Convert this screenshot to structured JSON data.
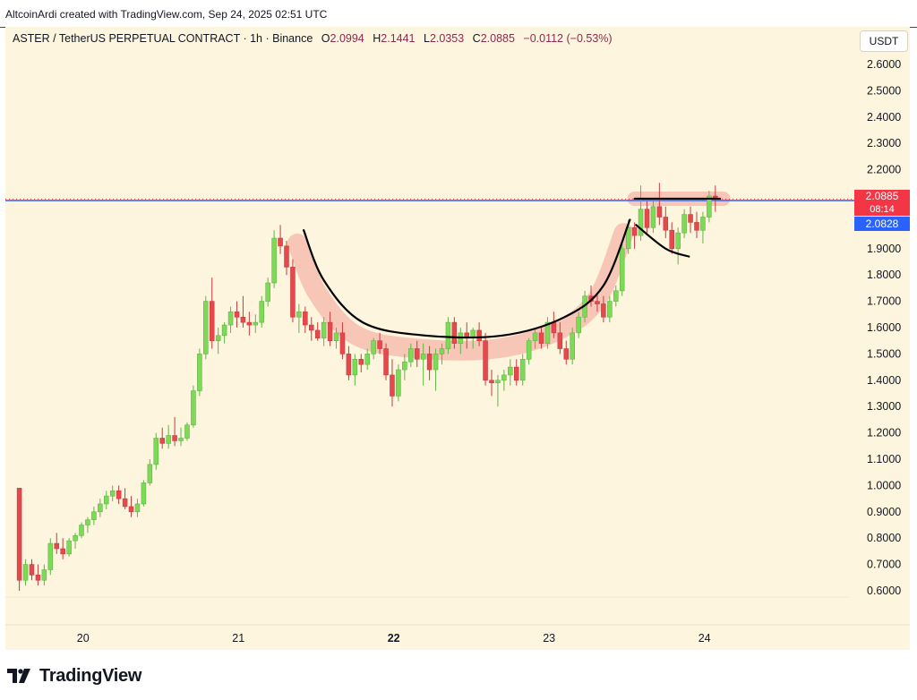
{
  "credit": "AltcoinArdi created with TradingView.com, Sep 24, 2025 02:51 UTC",
  "header": {
    "symbol": "ASTER / TetherUS PERPETUAL CONTRACT · 1h · Binance",
    "o_label": "O",
    "o": "2.0994",
    "h_label": "H",
    "h": "2.1441",
    "l_label": "L",
    "l": "2.0353",
    "c_label": "C",
    "c": "2.0885",
    "change": "−0.0112 (−0.53%)"
  },
  "unit": "USDT",
  "price_tags": {
    "last_price": "2.0885",
    "countdown": "08:14",
    "line_price": "2.0828"
  },
  "footer": {
    "brand": "TradingView",
    "logo_icon": "tradingview-logo-icon"
  },
  "colors": {
    "background": "#fdf5de",
    "up": "#7ed957",
    "down": "#e5484d",
    "horizontal_line": "#2962ff",
    "annotation_curve": "#000000",
    "annotation_highlight": "#f5b5a8"
  },
  "chart_data": {
    "type": "candlestick",
    "title": "ASTER / TetherUS PERPETUAL CONTRACT · 1h · Binance",
    "x_ticks": [
      "20",
      "21",
      "22",
      "23",
      "24"
    ],
    "x_tick_positions_day": [
      20,
      21,
      22,
      23,
      24
    ],
    "x_range_day": [
      19.5,
      24.93
    ],
    "y_ticks": [
      "2.6000",
      "2.5000",
      "2.4000",
      "2.3000",
      "2.2000",
      "2.1000",
      "2.0000",
      "1.9000",
      "1.8000",
      "1.7000",
      "1.6000",
      "1.5000",
      "1.4000",
      "1.3000",
      "1.2000",
      "1.1000",
      "1.0000",
      "0.9000",
      "0.8000",
      "0.7000",
      "0.6000"
    ],
    "ylim": [
      0.55,
      2.65
    ],
    "horizontal_line": 2.0828,
    "last_price": 2.0885,
    "candles": [
      {
        "t": 19.59,
        "o": 0.99,
        "h": 0.99,
        "l": 0.6,
        "c": 0.64
      },
      {
        "t": 19.63,
        "o": 0.64,
        "h": 0.72,
        "l": 0.62,
        "c": 0.7
      },
      {
        "t": 19.67,
        "o": 0.7,
        "h": 0.72,
        "l": 0.64,
        "c": 0.66
      },
      {
        "t": 19.71,
        "o": 0.66,
        "h": 0.7,
        "l": 0.62,
        "c": 0.64
      },
      {
        "t": 19.75,
        "o": 0.64,
        "h": 0.7,
        "l": 0.62,
        "c": 0.68
      },
      {
        "t": 19.79,
        "o": 0.68,
        "h": 0.8,
        "l": 0.66,
        "c": 0.78
      },
      {
        "t": 19.83,
        "o": 0.78,
        "h": 0.82,
        "l": 0.74,
        "c": 0.76
      },
      {
        "t": 19.87,
        "o": 0.76,
        "h": 0.8,
        "l": 0.72,
        "c": 0.74
      },
      {
        "t": 19.91,
        "o": 0.74,
        "h": 0.8,
        "l": 0.73,
        "c": 0.79
      },
      {
        "t": 19.95,
        "o": 0.79,
        "h": 0.82,
        "l": 0.76,
        "c": 0.81
      },
      {
        "t": 19.99,
        "o": 0.81,
        "h": 0.86,
        "l": 0.8,
        "c": 0.85
      },
      {
        "t": 20.03,
        "o": 0.85,
        "h": 0.88,
        "l": 0.82,
        "c": 0.87
      },
      {
        "t": 20.07,
        "o": 0.87,
        "h": 0.92,
        "l": 0.85,
        "c": 0.9
      },
      {
        "t": 20.11,
        "o": 0.9,
        "h": 0.95,
        "l": 0.88,
        "c": 0.93
      },
      {
        "t": 20.15,
        "o": 0.93,
        "h": 0.98,
        "l": 0.91,
        "c": 0.96
      },
      {
        "t": 20.19,
        "o": 0.96,
        "h": 1.0,
        "l": 0.94,
        "c": 0.98
      },
      {
        "t": 20.23,
        "o": 0.98,
        "h": 1.0,
        "l": 0.93,
        "c": 0.95
      },
      {
        "t": 20.27,
        "o": 0.95,
        "h": 0.99,
        "l": 0.91,
        "c": 0.92
      },
      {
        "t": 20.31,
        "o": 0.92,
        "h": 0.96,
        "l": 0.88,
        "c": 0.9
      },
      {
        "t": 20.35,
        "o": 0.9,
        "h": 0.95,
        "l": 0.88,
        "c": 0.93
      },
      {
        "t": 20.39,
        "o": 0.93,
        "h": 1.02,
        "l": 0.92,
        "c": 1.01
      },
      {
        "t": 20.43,
        "o": 1.01,
        "h": 1.1,
        "l": 1.0,
        "c": 1.08
      },
      {
        "t": 20.47,
        "o": 1.08,
        "h": 1.2,
        "l": 1.06,
        "c": 1.18
      },
      {
        "t": 20.51,
        "o": 1.18,
        "h": 1.22,
        "l": 1.14,
        "c": 1.16
      },
      {
        "t": 20.55,
        "o": 1.16,
        "h": 1.23,
        "l": 1.14,
        "c": 1.19
      },
      {
        "t": 20.59,
        "o": 1.19,
        "h": 1.26,
        "l": 1.15,
        "c": 1.17
      },
      {
        "t": 20.63,
        "o": 1.17,
        "h": 1.22,
        "l": 1.15,
        "c": 1.18
      },
      {
        "t": 20.67,
        "o": 1.18,
        "h": 1.24,
        "l": 1.17,
        "c": 1.23
      },
      {
        "t": 20.71,
        "o": 1.23,
        "h": 1.38,
        "l": 1.22,
        "c": 1.36
      },
      {
        "t": 20.75,
        "o": 1.36,
        "h": 1.52,
        "l": 1.34,
        "c": 1.5
      },
      {
        "t": 20.79,
        "o": 1.5,
        "h": 1.72,
        "l": 1.48,
        "c": 1.7
      },
      {
        "t": 20.83,
        "o": 1.7,
        "h": 1.79,
        "l": 1.52,
        "c": 1.55
      },
      {
        "t": 20.87,
        "o": 1.55,
        "h": 1.6,
        "l": 1.5,
        "c": 1.57
      },
      {
        "t": 20.91,
        "o": 1.57,
        "h": 1.62,
        "l": 1.54,
        "c": 1.61
      },
      {
        "t": 20.95,
        "o": 1.61,
        "h": 1.68,
        "l": 1.58,
        "c": 1.66
      },
      {
        "t": 20.99,
        "o": 1.66,
        "h": 1.7,
        "l": 1.6,
        "c": 1.64
      },
      {
        "t": 21.03,
        "o": 1.64,
        "h": 1.72,
        "l": 1.6,
        "c": 1.62
      },
      {
        "t": 21.07,
        "o": 1.62,
        "h": 1.66,
        "l": 1.57,
        "c": 1.61
      },
      {
        "t": 21.11,
        "o": 1.61,
        "h": 1.65,
        "l": 1.58,
        "c": 1.62
      },
      {
        "t": 21.15,
        "o": 1.62,
        "h": 1.72,
        "l": 1.6,
        "c": 1.7
      },
      {
        "t": 21.19,
        "o": 1.7,
        "h": 1.79,
        "l": 1.68,
        "c": 1.77
      },
      {
        "t": 21.23,
        "o": 1.77,
        "h": 1.97,
        "l": 1.75,
        "c": 1.94
      },
      {
        "t": 21.27,
        "o": 1.94,
        "h": 1.99,
        "l": 1.88,
        "c": 1.91
      },
      {
        "t": 21.31,
        "o": 1.91,
        "h": 1.93,
        "l": 1.8,
        "c": 1.83
      },
      {
        "t": 21.35,
        "o": 1.83,
        "h": 1.86,
        "l": 1.62,
        "c": 1.64
      },
      {
        "t": 21.39,
        "o": 1.64,
        "h": 1.69,
        "l": 1.58,
        "c": 1.66
      },
      {
        "t": 21.43,
        "o": 1.66,
        "h": 1.68,
        "l": 1.58,
        "c": 1.61
      },
      {
        "t": 21.47,
        "o": 1.61,
        "h": 1.64,
        "l": 1.55,
        "c": 1.59
      },
      {
        "t": 21.51,
        "o": 1.59,
        "h": 1.62,
        "l": 1.55,
        "c": 1.56
      },
      {
        "t": 21.55,
        "o": 1.56,
        "h": 1.64,
        "l": 1.53,
        "c": 1.62
      },
      {
        "t": 21.59,
        "o": 1.62,
        "h": 1.66,
        "l": 1.53,
        "c": 1.55
      },
      {
        "t": 21.63,
        "o": 1.55,
        "h": 1.6,
        "l": 1.52,
        "c": 1.58
      },
      {
        "t": 21.67,
        "o": 1.58,
        "h": 1.62,
        "l": 1.48,
        "c": 1.5
      },
      {
        "t": 21.71,
        "o": 1.5,
        "h": 1.53,
        "l": 1.4,
        "c": 1.42
      },
      {
        "t": 21.75,
        "o": 1.42,
        "h": 1.5,
        "l": 1.38,
        "c": 1.48
      },
      {
        "t": 21.79,
        "o": 1.48,
        "h": 1.5,
        "l": 1.43,
        "c": 1.46
      },
      {
        "t": 21.83,
        "o": 1.46,
        "h": 1.52,
        "l": 1.44,
        "c": 1.5
      },
      {
        "t": 21.87,
        "o": 1.5,
        "h": 1.56,
        "l": 1.48,
        "c": 1.55
      },
      {
        "t": 21.91,
        "o": 1.55,
        "h": 1.58,
        "l": 1.5,
        "c": 1.52
      },
      {
        "t": 21.95,
        "o": 1.52,
        "h": 1.54,
        "l": 1.4,
        "c": 1.42
      },
      {
        "t": 21.99,
        "o": 1.42,
        "h": 1.48,
        "l": 1.3,
        "c": 1.34
      },
      {
        "t": 22.03,
        "o": 1.34,
        "h": 1.46,
        "l": 1.32,
        "c": 1.44
      },
      {
        "t": 22.07,
        "o": 1.44,
        "h": 1.5,
        "l": 1.4,
        "c": 1.47
      },
      {
        "t": 22.11,
        "o": 1.47,
        "h": 1.54,
        "l": 1.45,
        "c": 1.52
      },
      {
        "t": 22.15,
        "o": 1.52,
        "h": 1.55,
        "l": 1.45,
        "c": 1.48
      },
      {
        "t": 22.19,
        "o": 1.48,
        "h": 1.54,
        "l": 1.38,
        "c": 1.5
      },
      {
        "t": 22.23,
        "o": 1.5,
        "h": 1.53,
        "l": 1.4,
        "c": 1.44
      },
      {
        "t": 22.27,
        "o": 1.44,
        "h": 1.52,
        "l": 1.36,
        "c": 1.5
      },
      {
        "t": 22.31,
        "o": 1.5,
        "h": 1.54,
        "l": 1.46,
        "c": 1.52
      },
      {
        "t": 22.35,
        "o": 1.52,
        "h": 1.64,
        "l": 1.5,
        "c": 1.62
      },
      {
        "t": 22.39,
        "o": 1.62,
        "h": 1.64,
        "l": 1.52,
        "c": 1.54
      },
      {
        "t": 22.43,
        "o": 1.54,
        "h": 1.6,
        "l": 1.5,
        "c": 1.58
      },
      {
        "t": 22.47,
        "o": 1.58,
        "h": 1.62,
        "l": 1.52,
        "c": 1.56
      },
      {
        "t": 22.51,
        "o": 1.56,
        "h": 1.6,
        "l": 1.52,
        "c": 1.59
      },
      {
        "t": 22.55,
        "o": 1.59,
        "h": 1.62,
        "l": 1.53,
        "c": 1.55
      },
      {
        "t": 22.59,
        "o": 1.55,
        "h": 1.58,
        "l": 1.38,
        "c": 1.4
      },
      {
        "t": 22.63,
        "o": 1.4,
        "h": 1.44,
        "l": 1.34,
        "c": 1.39
      },
      {
        "t": 22.67,
        "o": 1.39,
        "h": 1.42,
        "l": 1.3,
        "c": 1.4
      },
      {
        "t": 22.71,
        "o": 1.4,
        "h": 1.44,
        "l": 1.36,
        "c": 1.42
      },
      {
        "t": 22.75,
        "o": 1.42,
        "h": 1.48,
        "l": 1.38,
        "c": 1.45
      },
      {
        "t": 22.79,
        "o": 1.45,
        "h": 1.48,
        "l": 1.38,
        "c": 1.4
      },
      {
        "t": 22.83,
        "o": 1.4,
        "h": 1.5,
        "l": 1.38,
        "c": 1.48
      },
      {
        "t": 22.87,
        "o": 1.48,
        "h": 1.56,
        "l": 1.46,
        "c": 1.55
      },
      {
        "t": 22.91,
        "o": 1.55,
        "h": 1.6,
        "l": 1.52,
        "c": 1.58
      },
      {
        "t": 22.95,
        "o": 1.58,
        "h": 1.6,
        "l": 1.52,
        "c": 1.54
      },
      {
        "t": 22.99,
        "o": 1.54,
        "h": 1.64,
        "l": 1.52,
        "c": 1.62
      },
      {
        "t": 23.03,
        "o": 1.62,
        "h": 1.66,
        "l": 1.56,
        "c": 1.58
      },
      {
        "t": 23.07,
        "o": 1.58,
        "h": 1.62,
        "l": 1.5,
        "c": 1.52
      },
      {
        "t": 23.11,
        "o": 1.52,
        "h": 1.55,
        "l": 1.46,
        "c": 1.48
      },
      {
        "t": 23.15,
        "o": 1.48,
        "h": 1.6,
        "l": 1.46,
        "c": 1.58
      },
      {
        "t": 23.19,
        "o": 1.58,
        "h": 1.66,
        "l": 1.56,
        "c": 1.64
      },
      {
        "t": 23.23,
        "o": 1.64,
        "h": 1.74,
        "l": 1.62,
        "c": 1.72
      },
      {
        "t": 23.27,
        "o": 1.72,
        "h": 1.76,
        "l": 1.68,
        "c": 1.7
      },
      {
        "t": 23.31,
        "o": 1.7,
        "h": 1.73,
        "l": 1.66,
        "c": 1.69
      },
      {
        "t": 23.35,
        "o": 1.69,
        "h": 1.72,
        "l": 1.62,
        "c": 1.64
      },
      {
        "t": 23.39,
        "o": 1.64,
        "h": 1.72,
        "l": 1.62,
        "c": 1.7
      },
      {
        "t": 23.43,
        "o": 1.7,
        "h": 1.76,
        "l": 1.68,
        "c": 1.74
      },
      {
        "t": 23.47,
        "o": 1.74,
        "h": 1.92,
        "l": 1.72,
        "c": 1.9
      },
      {
        "t": 23.51,
        "o": 1.9,
        "h": 2.01,
        "l": 1.88,
        "c": 1.98
      },
      {
        "t": 23.55,
        "o": 1.98,
        "h": 2.0,
        "l": 1.9,
        "c": 1.95
      },
      {
        "t": 23.59,
        "o": 1.95,
        "h": 2.14,
        "l": 1.93,
        "c": 2.05
      },
      {
        "t": 23.63,
        "o": 2.05,
        "h": 2.08,
        "l": 1.96,
        "c": 1.98
      },
      {
        "t": 23.67,
        "o": 1.98,
        "h": 2.08,
        "l": 1.96,
        "c": 2.06
      },
      {
        "t": 23.71,
        "o": 2.06,
        "h": 2.15,
        "l": 1.99,
        "c": 2.02
      },
      {
        "t": 23.75,
        "o": 2.02,
        "h": 2.06,
        "l": 1.94,
        "c": 1.97
      },
      {
        "t": 23.79,
        "o": 1.97,
        "h": 2.0,
        "l": 1.88,
        "c": 1.9
      },
      {
        "t": 23.83,
        "o": 1.9,
        "h": 1.98,
        "l": 1.84,
        "c": 1.96
      },
      {
        "t": 23.87,
        "o": 1.96,
        "h": 2.05,
        "l": 1.94,
        "c": 2.03
      },
      {
        "t": 23.91,
        "o": 2.03,
        "h": 2.06,
        "l": 1.96,
        "c": 2.0
      },
      {
        "t": 23.95,
        "o": 2.0,
        "h": 2.04,
        "l": 1.94,
        "c": 1.97
      },
      {
        "t": 23.99,
        "o": 1.97,
        "h": 2.04,
        "l": 1.92,
        "c": 2.02
      },
      {
        "t": 24.03,
        "o": 2.02,
        "h": 2.12,
        "l": 2.0,
        "c": 2.1
      },
      {
        "t": 24.07,
        "o": 2.1,
        "h": 2.14,
        "l": 2.04,
        "c": 2.09
      }
    ],
    "annotations": {
      "cup_curve": [
        [
          21.42,
          1.97
        ],
        [
          21.55,
          1.78
        ],
        [
          21.8,
          1.62
        ],
        [
          22.2,
          1.57
        ],
        [
          22.7,
          1.57
        ],
        [
          23.1,
          1.64
        ],
        [
          23.35,
          1.76
        ],
        [
          23.52,
          2.01
        ]
      ],
      "handle_top_line": {
        "t1": 23.55,
        "t2": 24.12,
        "price": 2.09
      },
      "handle_curve": [
        [
          23.56,
          1.99
        ],
        [
          23.75,
          1.9
        ],
        [
          23.9,
          1.87
        ]
      ]
    }
  }
}
